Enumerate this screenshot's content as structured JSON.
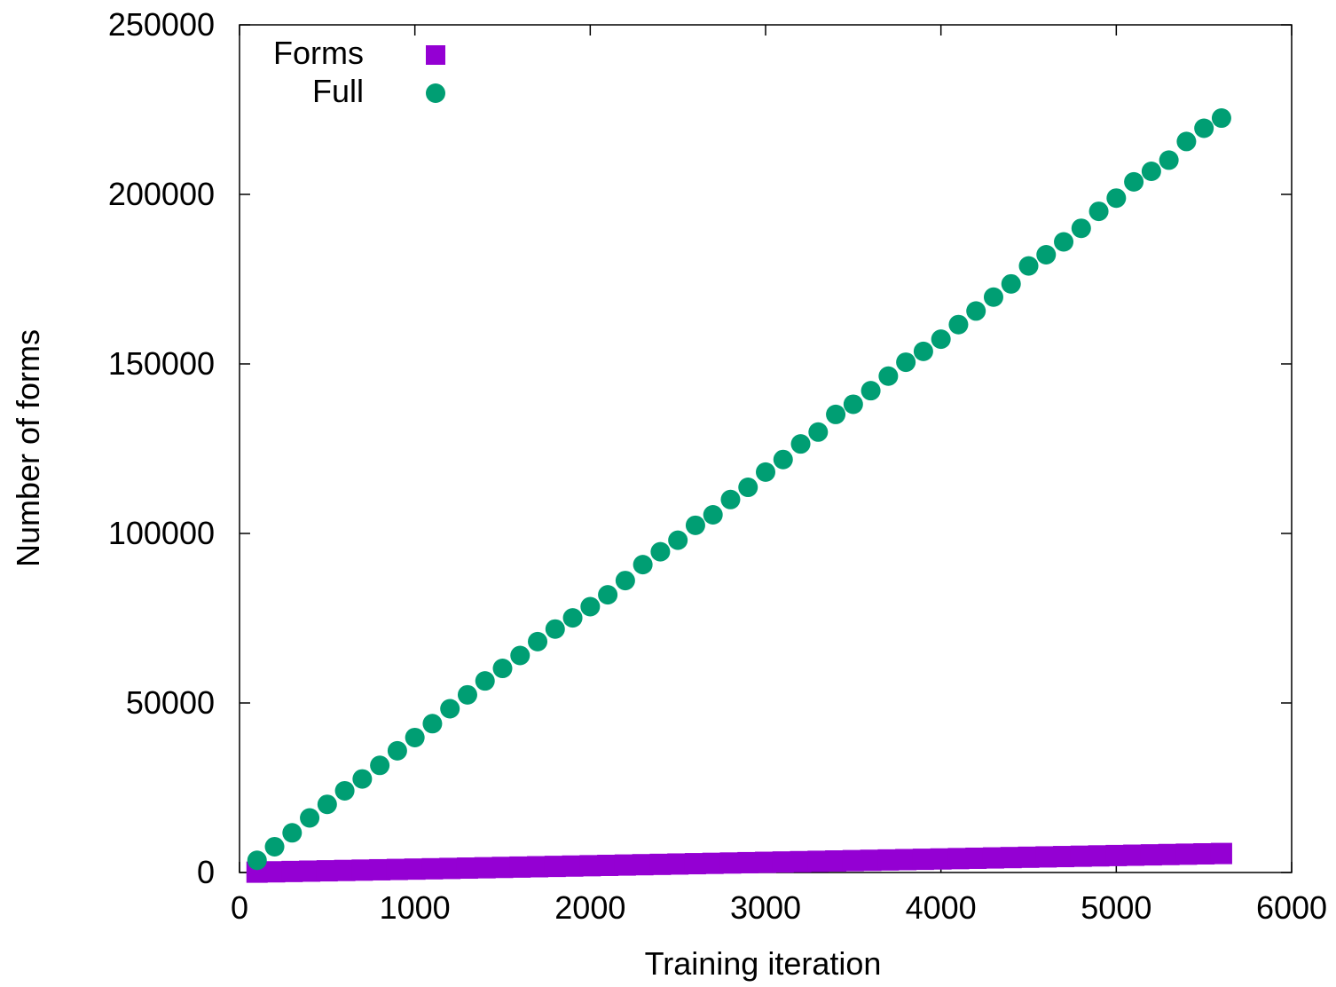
{
  "chart_data": {
    "type": "scatter",
    "xlabel": "Training iteration",
    "ylabel": "Number of forms",
    "xlim": [
      0,
      6000
    ],
    "ylim": [
      0,
      250000
    ],
    "x_ticks": [
      0,
      1000,
      2000,
      3000,
      4000,
      5000,
      6000
    ],
    "y_ticks": [
      0,
      50000,
      100000,
      150000,
      200000,
      250000
    ],
    "x_tick_labels": [
      "0",
      "1000",
      "2000",
      "3000",
      "4000",
      "5000",
      "6000"
    ],
    "y_tick_labels": [
      "0",
      "50000",
      "100000",
      "150000",
      "200000",
      "250000"
    ],
    "grid": false,
    "legend_position": "top-left",
    "series": [
      {
        "name": "Forms",
        "marker": "square",
        "color": "#9400d3",
        "x": [
          100,
          200,
          300,
          400,
          500,
          600,
          700,
          800,
          900,
          1000,
          1100,
          1200,
          1300,
          1400,
          1500,
          1600,
          1700,
          1800,
          1900,
          2000,
          2100,
          2200,
          2300,
          2400,
          2500,
          2600,
          2700,
          2800,
          2900,
          3000,
          3100,
          3200,
          3300,
          3400,
          3500,
          3600,
          3700,
          3800,
          3900,
          4000,
          4100,
          4200,
          4300,
          4400,
          4500,
          4600,
          4700,
          4800,
          4900,
          5000,
          5100,
          5200,
          5300,
          5400,
          5500,
          5600
        ],
        "y": [
          100,
          200,
          300,
          400,
          500,
          600,
          700,
          800,
          900,
          1000,
          1100,
          1200,
          1300,
          1400,
          1500,
          1600,
          1700,
          1800,
          1900,
          2000,
          2100,
          2200,
          2300,
          2400,
          2500,
          2600,
          2700,
          2800,
          2900,
          3000,
          3100,
          3200,
          3300,
          3400,
          3500,
          3600,
          3700,
          3800,
          3900,
          4000,
          4100,
          4200,
          4300,
          4400,
          4500,
          4600,
          4700,
          4800,
          4900,
          5000,
          5100,
          5200,
          5300,
          5400,
          5500,
          5600
        ]
      },
      {
        "name": "Full",
        "marker": "circle",
        "color": "#009e73",
        "x": [
          100,
          200,
          300,
          400,
          500,
          600,
          700,
          800,
          900,
          1000,
          1100,
          1200,
          1300,
          1400,
          1500,
          1600,
          1700,
          1800,
          1900,
          2000,
          2100,
          2200,
          2300,
          2400,
          2500,
          2600,
          2700,
          2800,
          2900,
          3000,
          3100,
          3200,
          3300,
          3400,
          3500,
          3600,
          3700,
          3800,
          3900,
          4000,
          4100,
          4200,
          4300,
          4400,
          4500,
          4600,
          4700,
          4800,
          4900,
          5000,
          5100,
          5200,
          5300,
          5400,
          5500,
          5600
        ],
        "y": [
          3600,
          7600,
          11700,
          16100,
          20100,
          24100,
          27600,
          31600,
          35900,
          39800,
          43900,
          48300,
          52400,
          56500,
          60200,
          64000,
          68100,
          71800,
          75100,
          78400,
          81900,
          86100,
          90800,
          94600,
          98000,
          102400,
          105500,
          110000,
          113600,
          118100,
          121800,
          126400,
          129900,
          135100,
          138100,
          142100,
          146400,
          150500,
          153700,
          157300,
          161600,
          165600,
          169700,
          173600,
          178900,
          182200,
          186000,
          190000,
          195000,
          198900,
          203700,
          206800,
          210100,
          215600,
          219500,
          222500
        ]
      }
    ]
  }
}
